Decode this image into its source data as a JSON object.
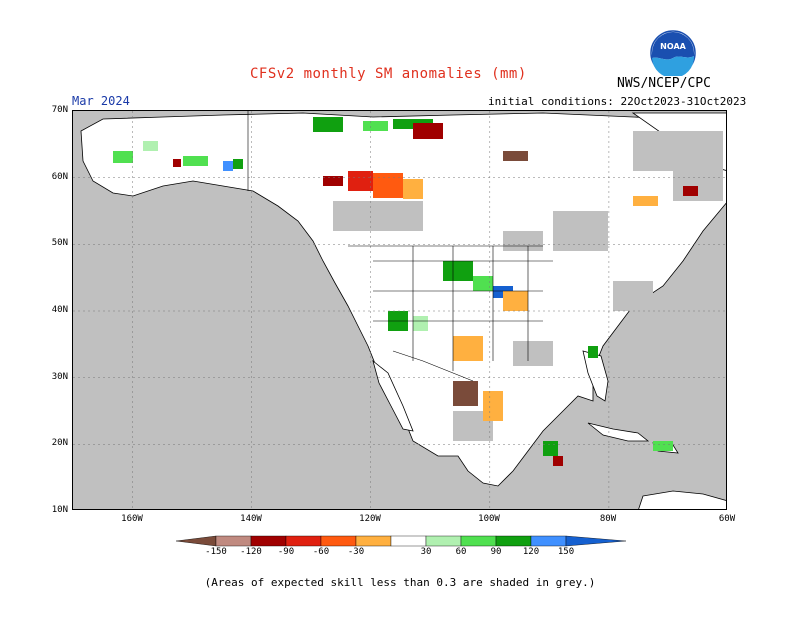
{
  "title": "CFSv2 monthly SM anomalies (mm)",
  "valid_month": "Mar 2024",
  "initial_conditions": "initial conditions: 22Oct2023-31Oct2023",
  "agency": "NWS/NCEP/CPC",
  "logo_text": "NOAA",
  "footnote": "(Areas of expected skill less than 0.3 are shaded in grey.)",
  "lat_labels": [
    "70N",
    "60N",
    "50N",
    "40N",
    "30N",
    "20N",
    "10N"
  ],
  "lon_labels": [
    "160W",
    "140W",
    "120W",
    "100W",
    "80W",
    "60W"
  ],
  "colorbar": {
    "labels": [
      "-150",
      "-120",
      "-90",
      "-60",
      "-30",
      "30",
      "60",
      "90",
      "120",
      "150"
    ],
    "colors": [
      "#7a4b3a",
      "#c08a80",
      "#a00000",
      "#e02010",
      "#ff5a10",
      "#ffb040",
      "#ffffff",
      "#b0f0b0",
      "#50e050",
      "#10a010",
      "#4090ff",
      "#1560d0"
    ]
  },
  "colors": {
    "skill_grey": "#c0c0c0",
    "land_white": "#ffffff",
    "title": "#e0301e",
    "valid": "#1a3aa8"
  }
}
